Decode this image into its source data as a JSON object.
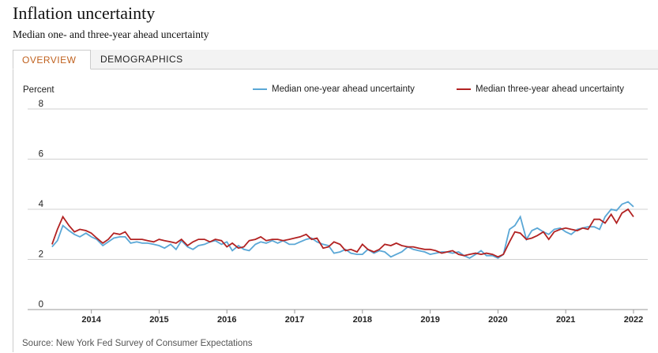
{
  "header": {
    "title": "Inflation uncertainty",
    "subtitle": "Median one- and three-year ahead uncertainty"
  },
  "tabs": [
    "OVERVIEW",
    "DEMOGRAPHICS"
  ],
  "source": "Source: New York Fed Survey of Consumer Expectations",
  "chart_data": {
    "type": "line",
    "y_label": "Percent",
    "legend": "top-right",
    "grid": true,
    "xlim": [
      2013.06,
      2022.21
    ],
    "xticks": [
      2014,
      2015,
      2016,
      2017,
      2018,
      2019,
      2020,
      2021,
      2022
    ],
    "ylim": [
      0,
      8
    ],
    "yticks": [
      0,
      2,
      4,
      6,
      8
    ],
    "x": [
      2013.42,
      2013.5,
      2013.58,
      2013.67,
      2013.75,
      2013.83,
      2013.92,
      2014.0,
      2014.08,
      2014.17,
      2014.25,
      2014.33,
      2014.42,
      2014.5,
      2014.58,
      2014.67,
      2014.75,
      2014.83,
      2014.92,
      2015.0,
      2015.08,
      2015.17,
      2015.25,
      2015.33,
      2015.42,
      2015.5,
      2015.58,
      2015.67,
      2015.75,
      2015.83,
      2015.92,
      2016.0,
      2016.08,
      2016.17,
      2016.25,
      2016.33,
      2016.42,
      2016.5,
      2016.58,
      2016.67,
      2016.75,
      2016.83,
      2016.92,
      2017.0,
      2017.08,
      2017.17,
      2017.25,
      2017.33,
      2017.42,
      2017.5,
      2017.58,
      2017.67,
      2017.75,
      2017.83,
      2017.92,
      2018.0,
      2018.08,
      2018.17,
      2018.25,
      2018.33,
      2018.42,
      2018.5,
      2018.58,
      2018.67,
      2018.75,
      2018.83,
      2018.92,
      2019.0,
      2019.08,
      2019.17,
      2019.25,
      2019.33,
      2019.42,
      2019.5,
      2019.58,
      2019.67,
      2019.75,
      2019.83,
      2019.92,
      2020.0,
      2020.08,
      2020.17,
      2020.25,
      2020.33,
      2020.42,
      2020.5,
      2020.58,
      2020.67,
      2020.75,
      2020.83,
      2020.92,
      2021.0,
      2021.08,
      2021.17,
      2021.25,
      2021.33,
      2021.42,
      2021.5,
      2021.58,
      2021.67,
      2021.75,
      2021.83,
      2021.92,
      2022.0
    ],
    "series": [
      {
        "name": "Median one-year ahead uncertainty",
        "color": "#5aa7d6",
        "values": [
          2.5,
          2.75,
          3.35,
          3.15,
          3.0,
          2.9,
          3.05,
          2.9,
          2.8,
          2.55,
          2.7,
          2.85,
          2.9,
          2.9,
          2.65,
          2.7,
          2.65,
          2.65,
          2.6,
          2.55,
          2.45,
          2.6,
          2.4,
          2.75,
          2.5,
          2.4,
          2.55,
          2.6,
          2.7,
          2.75,
          2.6,
          2.7,
          2.35,
          2.55,
          2.4,
          2.35,
          2.6,
          2.7,
          2.65,
          2.75,
          2.65,
          2.75,
          2.6,
          2.6,
          2.7,
          2.8,
          2.85,
          2.7,
          2.6,
          2.55,
          2.25,
          2.3,
          2.4,
          2.25,
          2.2,
          2.2,
          2.4,
          2.25,
          2.35,
          2.3,
          2.1,
          2.2,
          2.3,
          2.5,
          2.4,
          2.35,
          2.3,
          2.2,
          2.25,
          2.3,
          2.3,
          2.25,
          2.3,
          2.15,
          2.05,
          2.2,
          2.35,
          2.15,
          2.15,
          2.05,
          2.2,
          3.2,
          3.35,
          3.7,
          2.8,
          3.15,
          3.25,
          3.1,
          3.0,
          3.2,
          3.25,
          3.1,
          3.0,
          3.2,
          3.25,
          3.3,
          3.3,
          3.2,
          3.7,
          4.0,
          3.95,
          4.2,
          4.3,
          4.1
        ]
      },
      {
        "name": "Median three-year ahead uncertainty",
        "color": "#b22222",
        "values": [
          2.6,
          3.2,
          3.7,
          3.35,
          3.1,
          3.2,
          3.15,
          3.05,
          2.85,
          2.65,
          2.8,
          3.05,
          3.0,
          3.1,
          2.8,
          2.8,
          2.8,
          2.75,
          2.7,
          2.8,
          2.75,
          2.7,
          2.65,
          2.8,
          2.55,
          2.7,
          2.8,
          2.8,
          2.7,
          2.8,
          2.75,
          2.5,
          2.65,
          2.45,
          2.5,
          2.75,
          2.8,
          2.9,
          2.75,
          2.8,
          2.8,
          2.75,
          2.8,
          2.85,
          2.9,
          3.0,
          2.8,
          2.85,
          2.45,
          2.5,
          2.7,
          2.6,
          2.35,
          2.4,
          2.3,
          2.6,
          2.4,
          2.3,
          2.4,
          2.6,
          2.55,
          2.65,
          2.55,
          2.5,
          2.5,
          2.45,
          2.4,
          2.4,
          2.35,
          2.25,
          2.3,
          2.35,
          2.2,
          2.15,
          2.2,
          2.25,
          2.2,
          2.25,
          2.2,
          2.1,
          2.2,
          2.7,
          3.1,
          3.05,
          2.8,
          2.85,
          2.95,
          3.1,
          2.8,
          3.1,
          3.2,
          3.25,
          3.2,
          3.15,
          3.25,
          3.2,
          3.6,
          3.6,
          3.45,
          3.8,
          3.45,
          3.85,
          4.0,
          3.7
        ]
      }
    ]
  }
}
